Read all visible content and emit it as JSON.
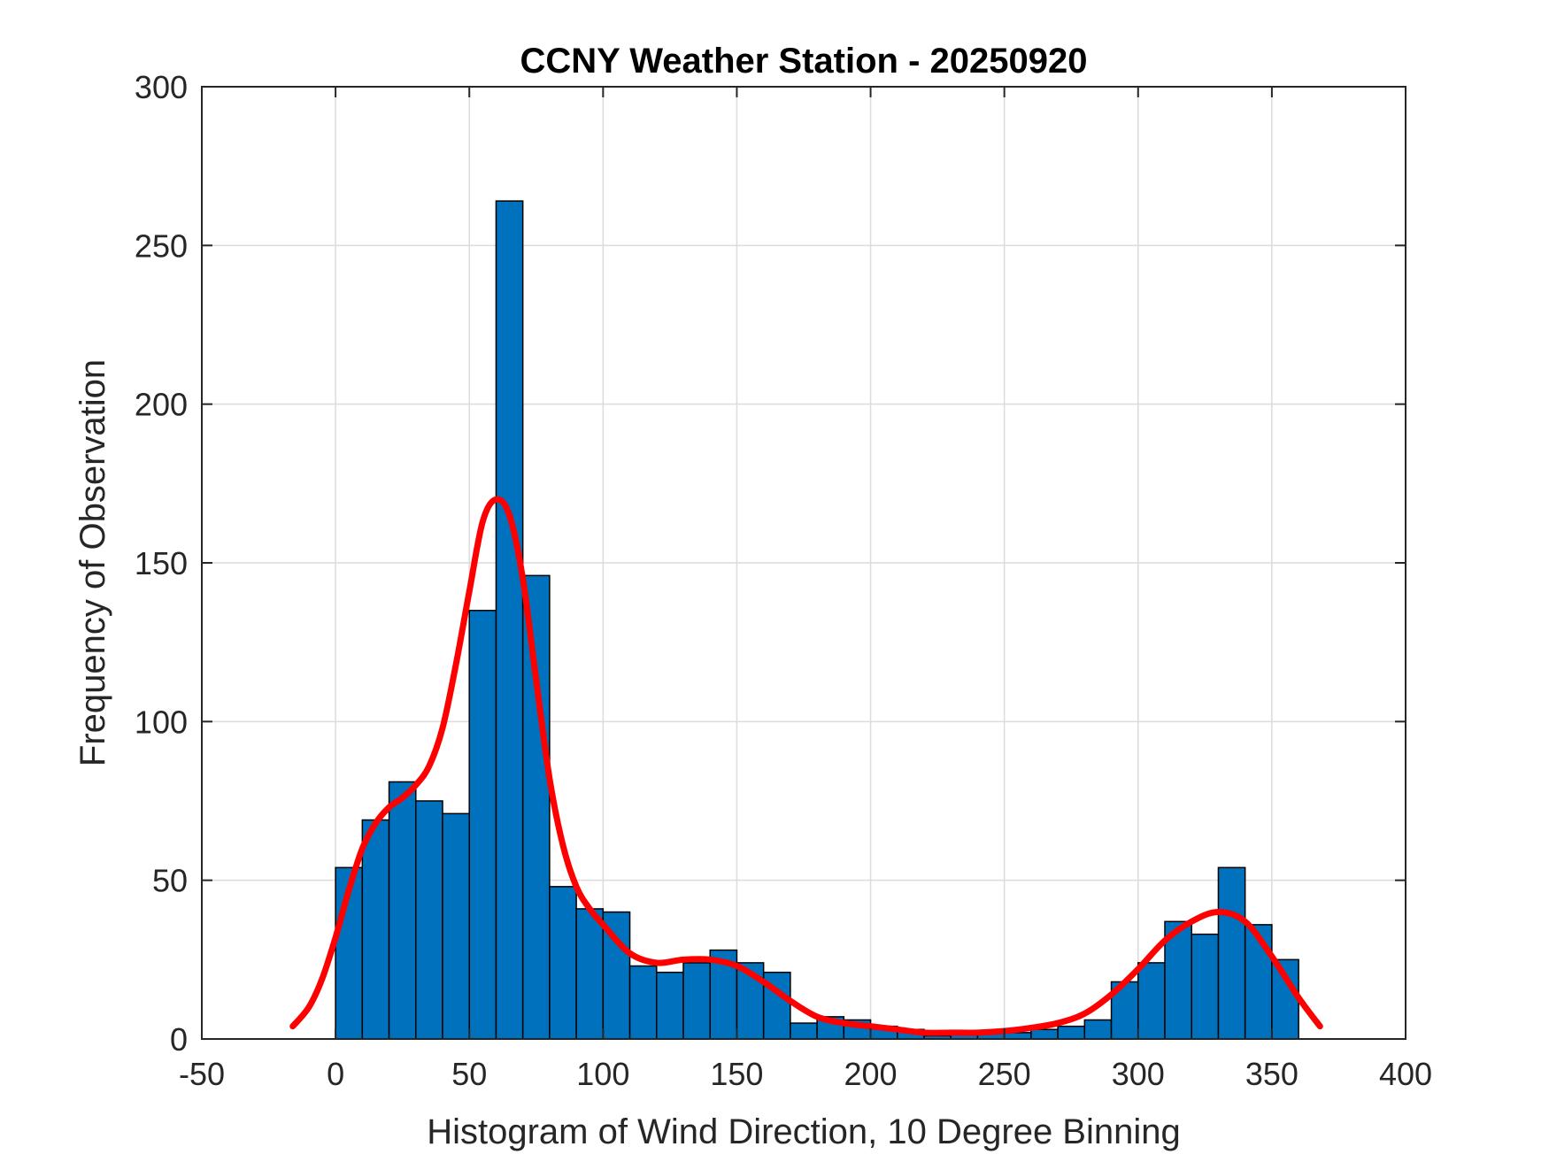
{
  "chart_data": {
    "type": "bar",
    "title": "CCNY Weather Station - 20250920",
    "xlabel": "Histogram of Wind Direction, 10 Degree Binning",
    "ylabel": "Frequency of Observation",
    "xlim": [
      -50,
      400
    ],
    "ylim": [
      0,
      300
    ],
    "x_ticks": [
      -50,
      0,
      50,
      100,
      150,
      200,
      250,
      300,
      350,
      400
    ],
    "y_ticks": [
      0,
      50,
      100,
      150,
      200,
      250,
      300
    ],
    "grid": true,
    "bin_width": 10,
    "bin_edges": [
      0,
      10,
      20,
      30,
      40,
      50,
      60,
      70,
      80,
      90,
      100,
      110,
      120,
      130,
      140,
      150,
      160,
      170,
      180,
      190,
      200,
      210,
      220,
      230,
      240,
      250,
      260,
      270,
      280,
      290,
      300,
      310,
      320,
      330,
      340,
      350,
      360
    ],
    "values": [
      54,
      69,
      81,
      75,
      71,
      135,
      264,
      146,
      48,
      41,
      40,
      23,
      21,
      24,
      28,
      24,
      21,
      5,
      7,
      6,
      4,
      3,
      1,
      2,
      2,
      2,
      3,
      4,
      6,
      18,
      24,
      37,
      33,
      54,
      36,
      25
    ],
    "bar_color": "#0072BD",
    "curve": {
      "color": "#FF0000",
      "x": [
        -16,
        -10,
        -5,
        0,
        5,
        10,
        15,
        20,
        25,
        30,
        35,
        40,
        45,
        50,
        55,
        60,
        65,
        70,
        75,
        80,
        85,
        90,
        95,
        100,
        110,
        120,
        130,
        140,
        150,
        160,
        170,
        180,
        190,
        200,
        210,
        220,
        230,
        240,
        250,
        260,
        270,
        280,
        290,
        300,
        310,
        320,
        330,
        340,
        350,
        360,
        368
      ],
      "y": [
        4,
        10,
        19,
        32,
        47,
        60,
        68,
        73,
        76,
        80,
        86,
        98,
        118,
        141,
        163,
        170,
        165,
        145,
        113,
        82,
        61,
        48,
        41,
        36,
        27,
        24,
        25,
        25,
        23,
        18,
        12,
        7,
        5,
        4,
        3,
        2,
        2,
        2,
        2.5,
        3.5,
        5,
        8,
        14,
        22,
        31,
        37,
        40,
        37,
        26,
        13,
        4
      ]
    }
  }
}
